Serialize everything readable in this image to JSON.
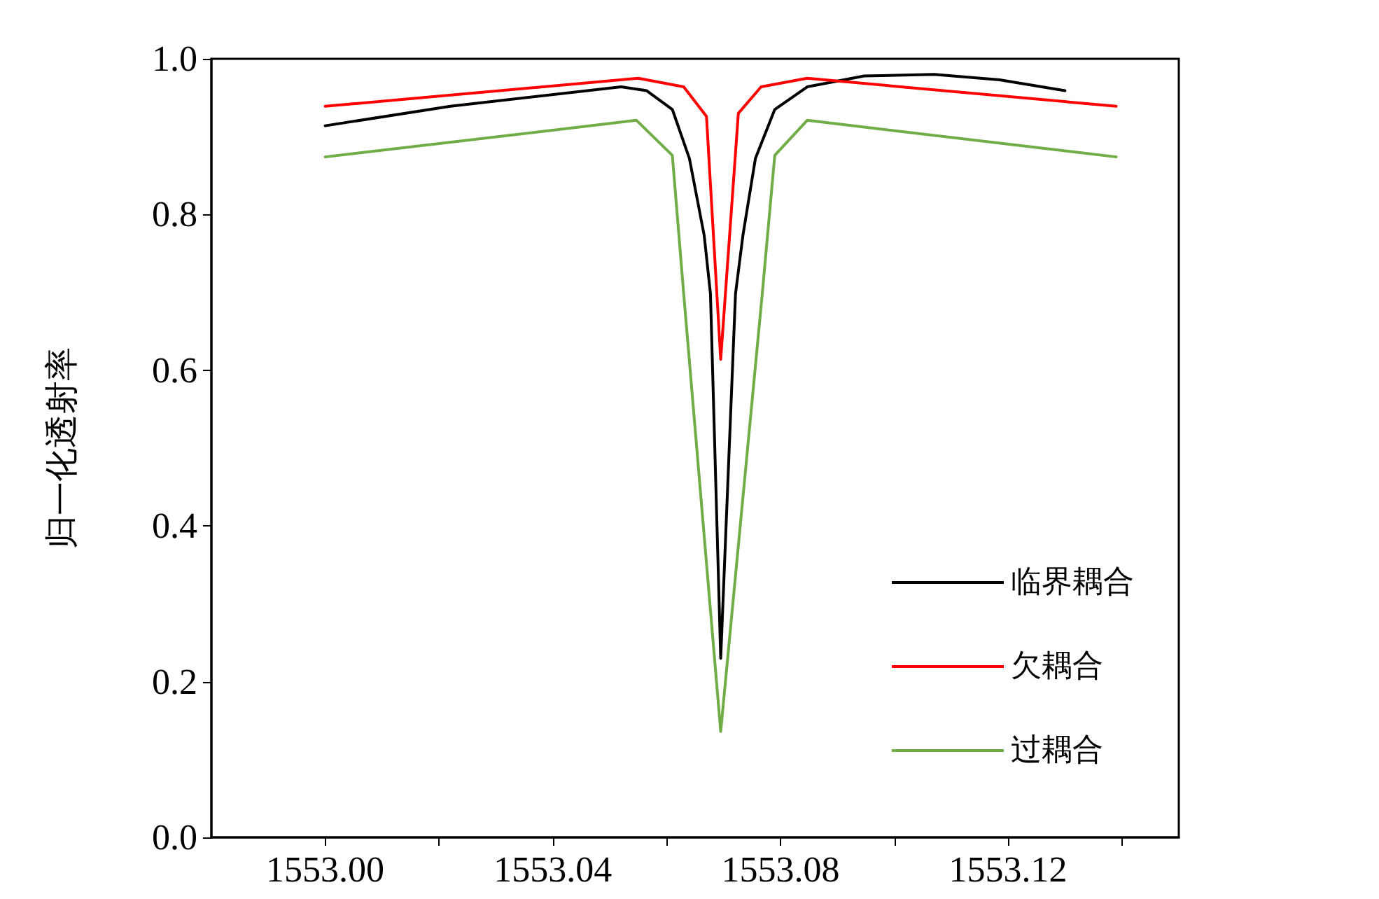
{
  "chart_data": {
    "type": "line",
    "ylabel": "归一化透射率",
    "xlim": [
      1552.98,
      1553.15
    ],
    "xticks": [
      {
        "value": 1553.0,
        "label": "1553.00"
      },
      {
        "value": 1553.02,
        "label": null
      },
      {
        "value": 1553.04,
        "label": "1553.04"
      },
      {
        "value": 1553.06,
        "label": null
      },
      {
        "value": 1553.08,
        "label": "1553.08"
      },
      {
        "value": 1553.1,
        "label": null
      },
      {
        "value": 1553.12,
        "label": "1553.12"
      },
      {
        "value": 1553.14,
        "label": null
      }
    ],
    "ylim": [
      0,
      1
    ],
    "yticks": [
      {
        "value": 0,
        "label": "0.0"
      },
      0.2,
      0.4,
      0.6,
      0.8,
      {
        "value": 1,
        "label": "1.0"
      }
    ],
    "grid": false,
    "legend": "bottom right",
    "marker": "none",
    "line_style": "solid",
    "series": [
      {
        "name": "临界耦合",
        "color": "#000000",
        "x": [
          1553.0,
          1553.022,
          1553.052,
          1553.0565,
          1553.061,
          1553.064,
          1553.0666,
          1553.0677,
          1553.0695,
          1553.0721,
          1553.0734,
          1553.0756,
          1553.079,
          1553.0847,
          1553.0947,
          1553.107,
          1553.1185,
          1553.13
        ],
        "values": [
          0.914,
          0.939,
          0.964,
          0.959,
          0.935,
          0.872,
          0.773,
          0.698,
          0.23,
          0.698,
          0.773,
          0.872,
          0.935,
          0.964,
          0.978,
          0.98,
          0.973,
          0.959
        ]
      },
      {
        "name": "欠耦合",
        "color": "#ff0000",
        "x": [
          1553.0,
          1553.055,
          1553.063,
          1553.067,
          1553.0695,
          1553.0726,
          1553.0766,
          1553.0847,
          1553.139
        ],
        "values": [
          0.939,
          0.975,
          0.964,
          0.926,
          0.614,
          0.93,
          0.964,
          0.975,
          0.939
        ]
      },
      {
        "name": "过耦合",
        "color": "#70ad47",
        "x": [
          1553.0,
          1553.0547,
          1553.061,
          1553.063,
          1553.0695,
          1553.0768,
          1553.079,
          1553.0847,
          1553.139
        ],
        "values": [
          0.874,
          0.921,
          0.876,
          0.698,
          0.136,
          0.698,
          0.876,
          0.921,
          0.874
        ]
      }
    ]
  }
}
